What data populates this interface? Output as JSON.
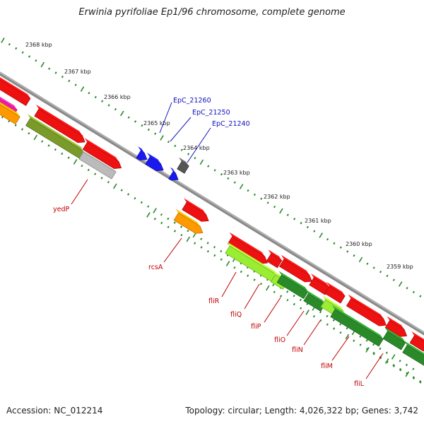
{
  "title": "Erwinia pyrifoliae Ep1/96 chromosome, complete genome",
  "footer": {
    "accession": "Accession: NC_012214",
    "topology": "Topology: circular; Length: 4,026,322 bp; Genes: 3,742"
  },
  "kbp_ticks": [
    "2368 kbp",
    "2367 kbp",
    "2366 kbp",
    "2365 kbp",
    "2364 kbp",
    "2363 kbp",
    "2362 kbp",
    "2361 kbp",
    "2360 kbp",
    "2359 kbp"
  ],
  "gene_labels": {
    "epc_21260": "EpC_21260",
    "epc_21250": "EpC_21250",
    "epc_21240": "EpC_21240",
    "yedP": "yedP",
    "rcsA": "rcsA",
    "fliR": "fliR",
    "fliQ": "fliQ",
    "fliP": "fliP",
    "fliO": "fliO",
    "fliN": "fliN",
    "fliM": "fliM",
    "fliL": "fliL"
  },
  "colors": {
    "backbone": "#8a8a8a",
    "tick": "#2a8a2a",
    "gene_red": "#ee1111",
    "gene_olive": "#7a9a2a",
    "gene_gray": "#bbbbbb",
    "gene_blue": "#1a1aee",
    "gene_darkgray": "#555555",
    "gene_orange": "#ff9900",
    "gene_green": "#2a8a2a",
    "gene_lime": "#99ee33",
    "gene_magenta": "#ee2299",
    "label_red": "#c00000",
    "label_blue": "#1010c0"
  }
}
